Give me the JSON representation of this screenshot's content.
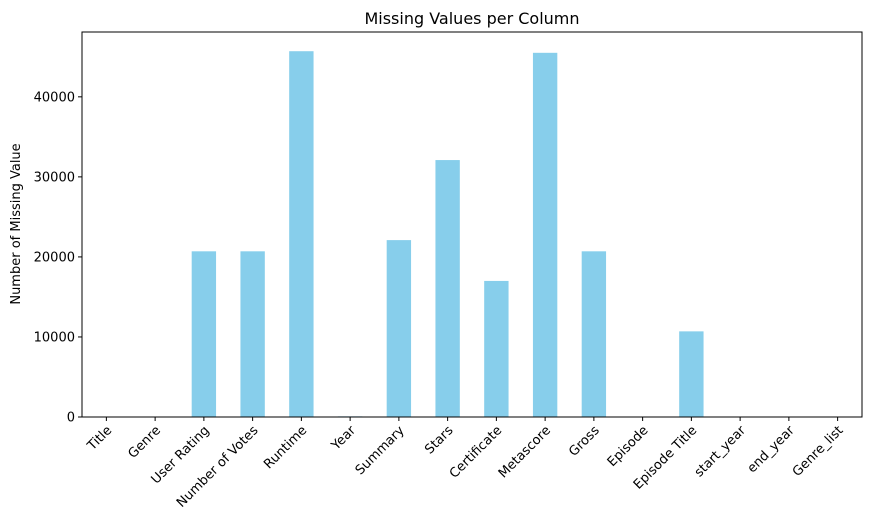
{
  "chart_data": {
    "type": "bar",
    "title": "Missing Values per Column",
    "xlabel": "",
    "ylabel": "Number of Missing Value",
    "ylim": [
      0,
      48100
    ],
    "yticks": [
      0,
      10000,
      20000,
      30000,
      40000
    ],
    "grid": false,
    "bar_color": "#87ceeb",
    "categories": [
      "Title",
      "Genre",
      "User Rating",
      "Number of Votes",
      "Runtime",
      "Year",
      "Summary",
      "Stars",
      "Certificate",
      "Metascore",
      "Gross",
      "Episode",
      "Episode Title",
      "start_year",
      "end_year",
      "Genre_list"
    ],
    "values": [
      0,
      0,
      20700,
      20700,
      45700,
      80,
      22100,
      32100,
      17000,
      45500,
      20700,
      0,
      10700,
      0,
      0,
      0
    ]
  }
}
